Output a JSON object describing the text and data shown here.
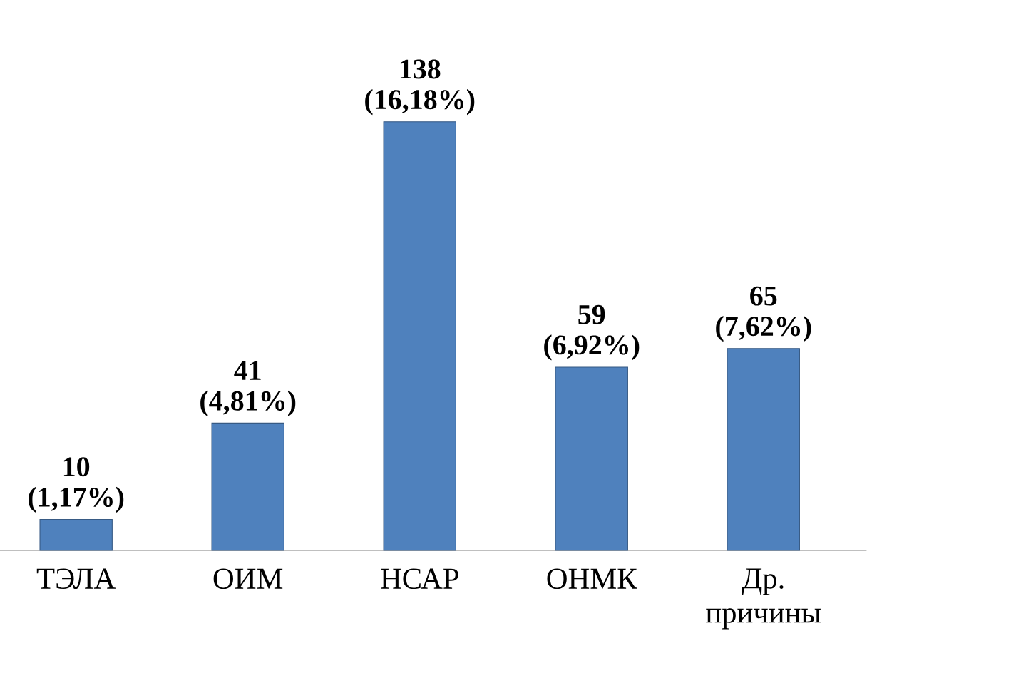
{
  "chart_data": {
    "type": "bar",
    "categories": [
      "ТЭЛА",
      "ОИМ",
      "НСАР",
      "ОНМК",
      "Др. причины"
    ],
    "values": [
      10,
      41,
      138,
      59,
      65
    ],
    "value_labels": [
      "10 (1,17%)",
      "41 (4,81%)",
      "138 (16,18%)",
      "59 (6,92%)",
      "65 (7,62%)"
    ],
    "color": "#4f81bd"
  }
}
